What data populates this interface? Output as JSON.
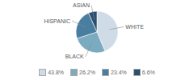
{
  "chart_data": {
    "type": "pie",
    "categories": [
      "WHITE",
      "BLACK",
      "HISPANIC",
      "ASIAN"
    ],
    "values": [
      43.8,
      26.2,
      23.4,
      6.6
    ],
    "value_labels": [
      "43.8%",
      "26.2%",
      "23.4%",
      "6.6%"
    ],
    "colors": [
      "#cfdce8",
      "#7aabbe",
      "#4a7ea0",
      "#2b4f6e"
    ],
    "legend": "bottom"
  }
}
